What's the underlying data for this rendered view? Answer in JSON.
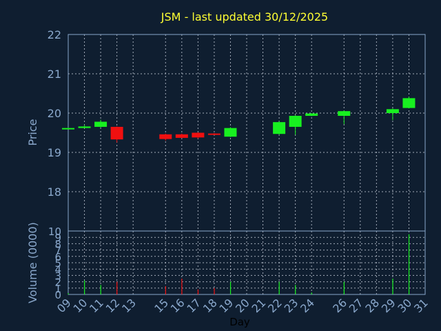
{
  "chart_data": [
    {
      "type": "candlestick",
      "title": "JSM - last updated 30/12/2025",
      "ylabel": "Price",
      "ylim": [
        17,
        22
      ],
      "yticks": [
        18,
        19,
        20,
        21,
        22
      ],
      "xlim": [
        9,
        31
      ],
      "up_color": "#18f020",
      "down_color": "#f01010",
      "grid": true,
      "x": [
        9,
        10,
        11,
        12,
        15,
        16,
        17,
        18,
        19,
        22,
        23,
        24,
        26,
        29,
        30
      ],
      "open": [
        19.6,
        19.62,
        19.65,
        19.65,
        19.46,
        19.46,
        19.5,
        19.48,
        19.4,
        19.47,
        19.65,
        19.93,
        19.93,
        20.0,
        20.13
      ],
      "high": [
        19.63,
        19.7,
        19.83,
        19.66,
        19.48,
        19.48,
        19.51,
        19.49,
        19.64,
        19.79,
        19.95,
        20.0,
        20.06,
        20.12,
        20.42
      ],
      "low": [
        19.6,
        19.62,
        19.63,
        19.25,
        19.3,
        19.36,
        19.35,
        19.44,
        19.39,
        19.45,
        19.45,
        19.92,
        19.72,
        19.82,
        20.12
      ],
      "close": [
        19.62,
        19.66,
        19.78,
        19.33,
        19.34,
        19.37,
        19.38,
        19.45,
        19.62,
        19.77,
        19.93,
        19.99,
        20.05,
        20.1,
        20.38
      ]
    },
    {
      "type": "bar",
      "ylabel": "Volume (0000)",
      "xlabel": "Day",
      "ylim": [
        0,
        10
      ],
      "yticks": [
        0,
        1,
        2,
        3,
        4,
        5,
        6,
        7,
        8,
        9,
        10
      ],
      "xlim": [
        9,
        31
      ],
      "grid": true,
      "xticks": [
        {
          "value": 9,
          "label": "09"
        },
        10,
        11,
        12,
        13,
        15,
        16,
        17,
        18,
        19,
        20,
        21,
        22,
        23,
        24,
        26,
        27,
        28,
        29,
        30,
        31
      ],
      "x": [
        9,
        10,
        11,
        12,
        15,
        16,
        17,
        18,
        19,
        22,
        23,
        24,
        26,
        29,
        30
      ],
      "values": [
        0.2,
        2.2,
        1.5,
        2.0,
        1.3,
        2.5,
        0.8,
        1.0,
        2.0,
        2.0,
        1.5,
        0.3,
        2.0,
        2.5,
        9.5
      ]
    }
  ]
}
